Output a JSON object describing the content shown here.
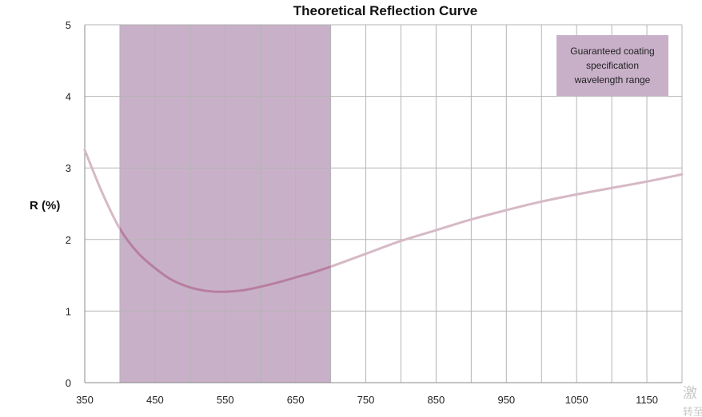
{
  "chart_data": {
    "type": "line",
    "title": "Theoretical Reflection Curve",
    "xlabel": "",
    "ylabel": "R (%)",
    "xlim": [
      350,
      1200
    ],
    "ylim": [
      0,
      5
    ],
    "x_ticks": [
      350,
      400,
      450,
      500,
      550,
      600,
      650,
      700,
      750,
      800,
      850,
      900,
      950,
      1000,
      1050,
      1100,
      1150,
      1200
    ],
    "x_tick_labels": [
      "350",
      "450",
      "550",
      "650",
      "750",
      "850",
      "950",
      "1050",
      "1150"
    ],
    "x_tick_label_values": [
      350,
      450,
      550,
      650,
      750,
      850,
      950,
      1050,
      1150
    ],
    "y_ticks": [
      0,
      1,
      2,
      3,
      4,
      5
    ],
    "y_tick_labels": [
      "0",
      "1",
      "2",
      "3",
      "4",
      "5"
    ],
    "grid": true,
    "shaded_region": {
      "x_start": 400,
      "x_end": 700,
      "color": "#c9b0c9",
      "legend_label": "Guaranteed coating specification wavelength range",
      "legend_lines": [
        "Guaranteed coating",
        "specification",
        "wavelength range"
      ],
      "legend_position": "top-right"
    },
    "series": [
      {
        "color": "#d6b9c6",
        "highlight_color": "#b67e9f",
        "x": [
          350,
          375,
          400,
          425,
          450,
          475,
          500,
          525,
          550,
          575,
          600,
          625,
          650,
          675,
          700,
          750,
          800,
          850,
          900,
          950,
          1000,
          1050,
          1100,
          1150,
          1200
        ],
        "y": [
          3.25,
          2.65,
          2.15,
          1.82,
          1.6,
          1.43,
          1.33,
          1.28,
          1.27,
          1.29,
          1.34,
          1.4,
          1.47,
          1.54,
          1.62,
          1.8,
          1.98,
          2.13,
          2.28,
          2.41,
          2.53,
          2.63,
          2.72,
          2.81,
          2.91
        ]
      }
    ]
  },
  "watermark": {
    "line1": "激",
    "line2": "转至"
  }
}
